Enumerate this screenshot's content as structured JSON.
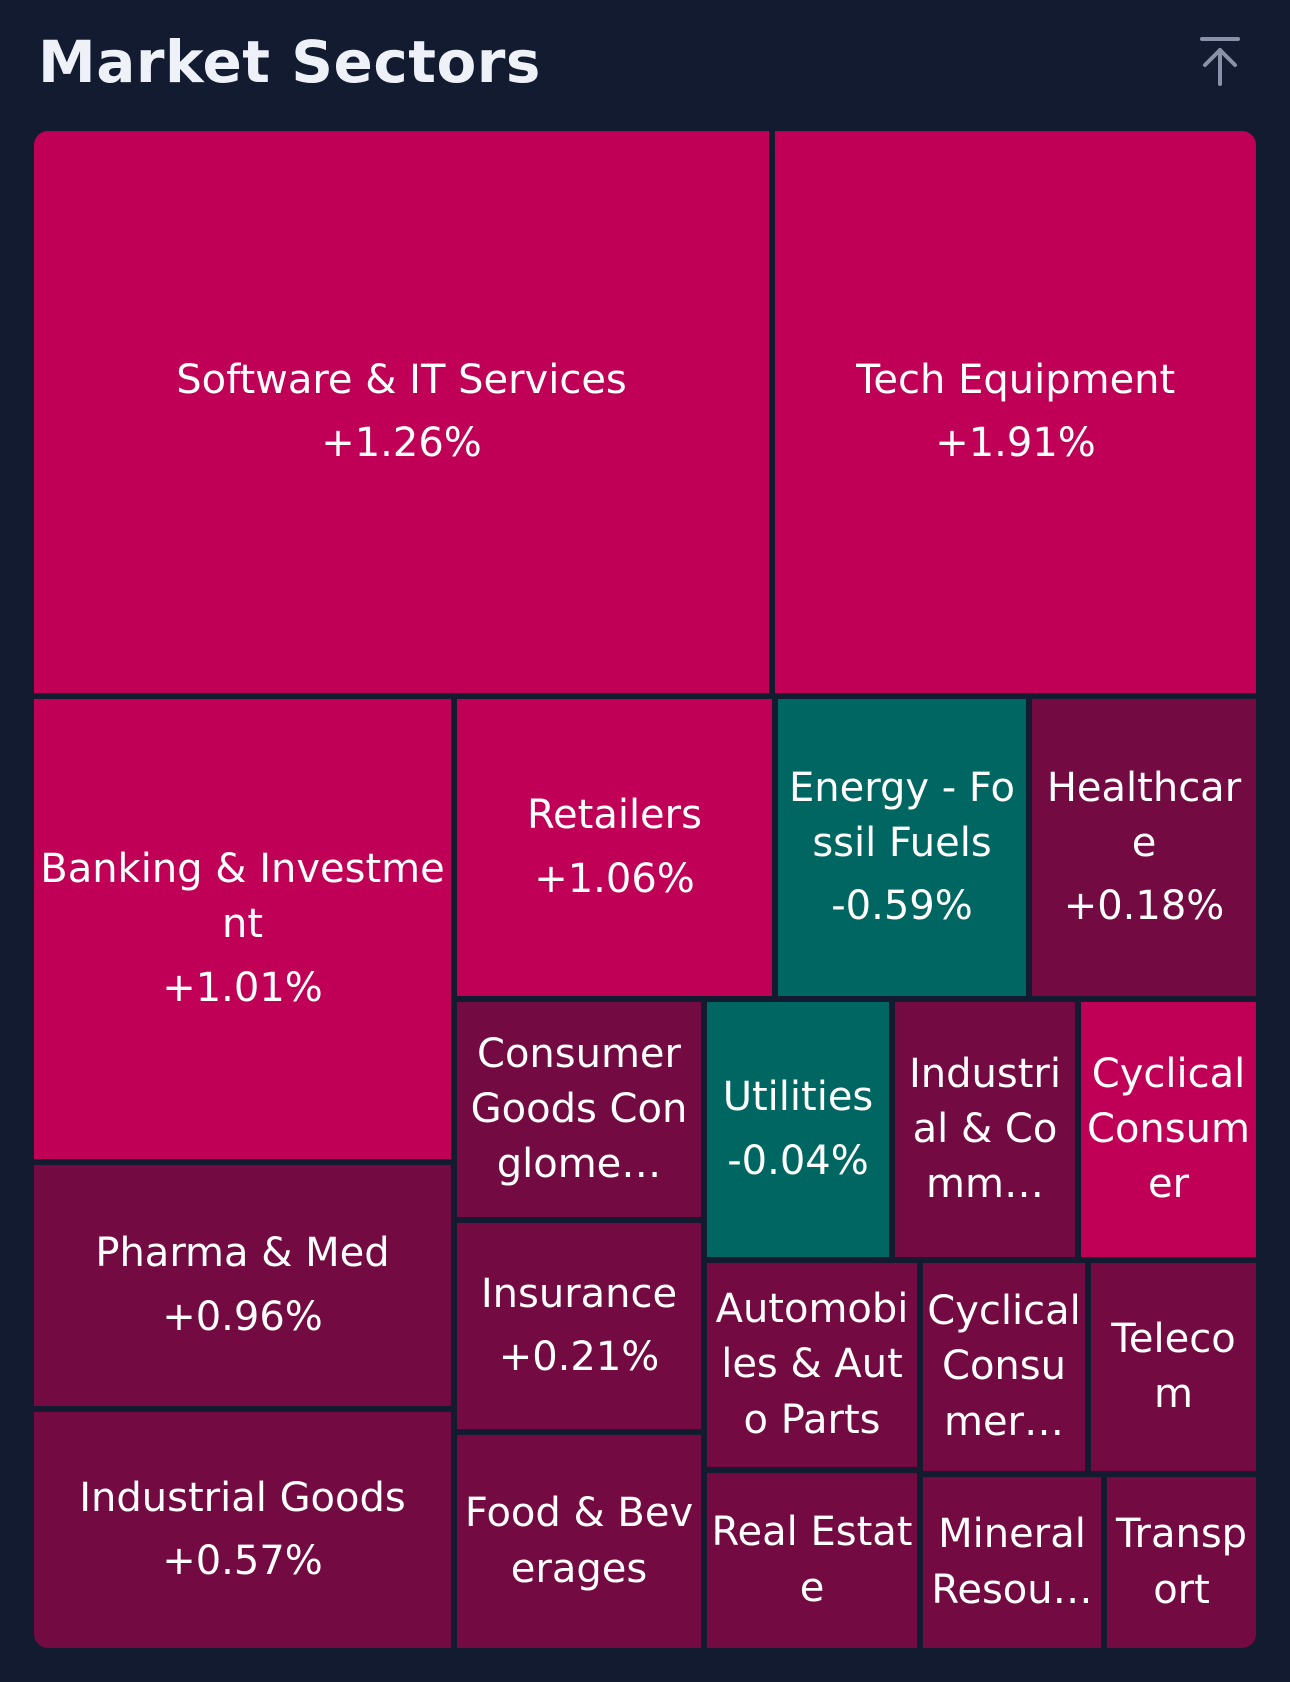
{
  "header": {
    "title": "Market Sectors",
    "scroll_top_icon": "arrow-up-to-top-icon"
  },
  "colors": {
    "background": "#131b31",
    "up_strong": "#c00056",
    "up_weak": "#730a41",
    "down": "#006661",
    "text": "#ffffff"
  },
  "chart_data": {
    "type": "treemap",
    "title": "Market Sectors",
    "cells": [
      {
        "name": "Software & IT Services",
        "change": "+1.26%",
        "value": 1.26
      },
      {
        "name": "Tech Equipment",
        "change": "+1.91%",
        "value": 1.91
      },
      {
        "name": "Banking & Investment",
        "change": "+1.01%",
        "value": 1.01
      },
      {
        "name": "Retailers",
        "change": "+1.06%",
        "value": 1.06
      },
      {
        "name": "Energy - Fossil Fuels",
        "change": "-0.59%",
        "value": -0.59
      },
      {
        "name": "Healthcare",
        "change": "+0.18%",
        "value": 0.18
      },
      {
        "name": "Pharma & Med",
        "change": "+0.96%",
        "value": 0.96
      },
      {
        "name": "Consumer Goods Conglome…",
        "change": "",
        "value": null
      },
      {
        "name": "Utilities",
        "change": "-0.04%",
        "value": -0.04
      },
      {
        "name": "Industrial & Comm…",
        "change": "",
        "value": null
      },
      {
        "name": "Cyclical Consumer",
        "change": "",
        "value": null
      },
      {
        "name": "Insurance",
        "change": "+0.21%",
        "value": 0.21
      },
      {
        "name": "Automobiles & Auto Parts",
        "change": "",
        "value": null
      },
      {
        "name": "Cyclical Consumer…",
        "change": "",
        "value": null
      },
      {
        "name": "Telecom",
        "change": "",
        "value": null
      },
      {
        "name": "Industrial Goods",
        "change": "+0.57%",
        "value": 0.57
      },
      {
        "name": "Food & Beverages",
        "change": "",
        "value": null
      },
      {
        "name": "Real Estate",
        "change": "",
        "value": null
      },
      {
        "name": "Mineral Resou…",
        "change": "",
        "value": null
      },
      {
        "name": "Transport",
        "change": "",
        "value": null
      }
    ]
  }
}
